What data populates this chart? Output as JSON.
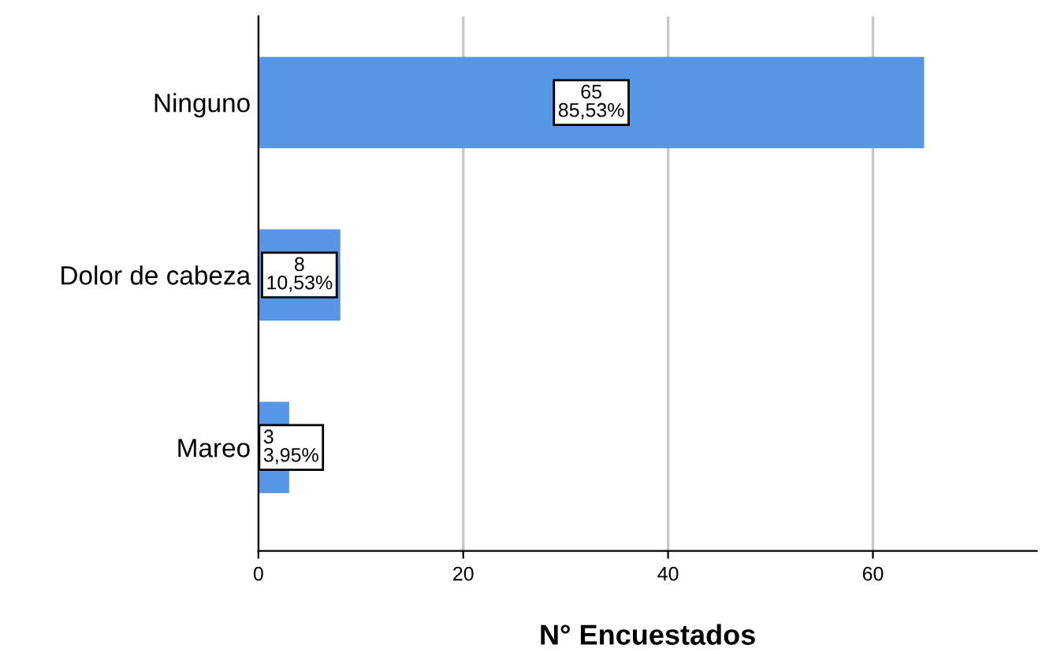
{
  "chart_data": {
    "type": "bar",
    "orientation": "horizontal",
    "categories": [
      "Ninguno",
      "Dolor de cabeza",
      "Mareo"
    ],
    "values": [
      65,
      8,
      3
    ],
    "color": "#5596e6",
    "value_labels": [
      "65\n85,53%",
      "8\n10,53%",
      "3\n3,95%"
    ],
    "xlabel": "N° Encuestados",
    "xlim": [
      0,
      76
    ],
    "xticks": [
      0,
      20,
      40,
      60
    ],
    "grid": "x",
    "legend": false
  }
}
